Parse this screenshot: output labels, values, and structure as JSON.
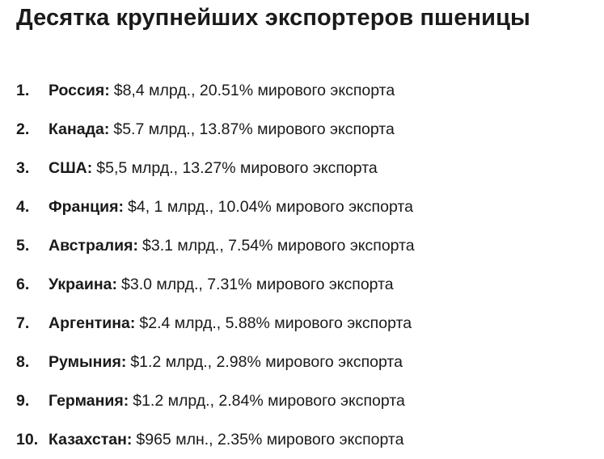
{
  "title": "Десятка крупнейших экспортеров пшеницы",
  "items": [
    {
      "num": "1.",
      "country": "Россия",
      "detail": "$8,4 млрд., 20.51% мирового экспорта"
    },
    {
      "num": "2.",
      "country": "Канада",
      "detail": "$5.7 млрд., 13.87% мирового экспорта"
    },
    {
      "num": "3.",
      "country": "США",
      "detail": "$5,5 млрд., 13.27% мирового экспорта"
    },
    {
      "num": "4.",
      "country": "Франция",
      "detail": "$4, 1 млрд., 10.04% мирового экспорта"
    },
    {
      "num": "5.",
      "country": "Австралия",
      "detail": "$3.1 млрд., 7.54% мирового экспорта"
    },
    {
      "num": "6.",
      "country": "Украина",
      "detail": "$3.0 млрд., 7.31% мирового экспорта"
    },
    {
      "num": "7.",
      "country": "Аргентина",
      "detail": "$2.4 млрд., 5.88% мирового экспорта"
    },
    {
      "num": "8.",
      "country": "Румыния",
      "detail": "$1.2 млрд., 2.98% мирового экспорта"
    },
    {
      "num": "9.",
      "country": "Германия",
      "detail": "$1.2 млрд., 2.84% мирового экспорта"
    },
    {
      "num": "10.",
      "country": "Казахстан",
      "detail": "$965 млн., 2.35% мирового экспорта"
    }
  ]
}
